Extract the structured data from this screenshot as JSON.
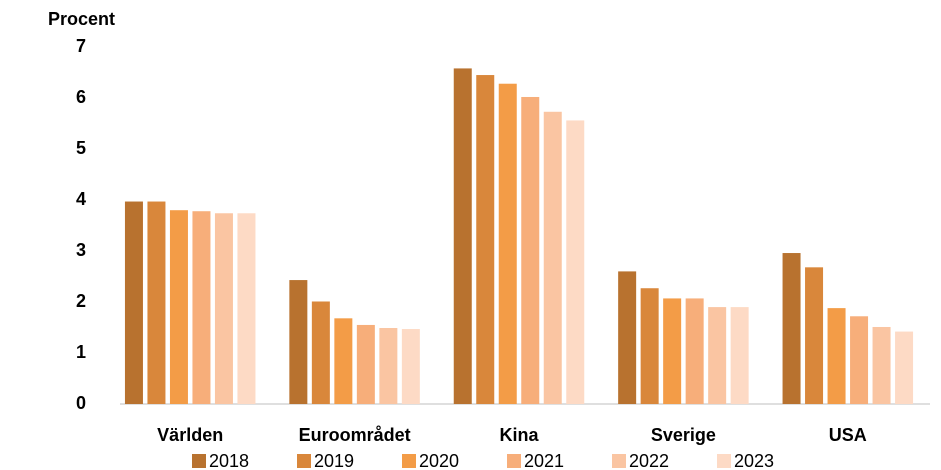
{
  "chart_data": {
    "type": "bar",
    "y_label": "Procent",
    "categories": [
      "Världen",
      "Euroområdet",
      "Kina",
      "Sverige",
      "USA"
    ],
    "series": [
      {
        "name": "2018",
        "color": "#b8722f",
        "values": [
          3.97,
          2.43,
          6.58,
          2.6,
          2.96
        ]
      },
      {
        "name": "2019",
        "color": "#d9873b",
        "values": [
          3.97,
          2.01,
          6.45,
          2.27,
          2.68
        ]
      },
      {
        "name": "2020",
        "color": "#f39c47",
        "values": [
          3.8,
          1.68,
          6.28,
          2.07,
          1.88
        ]
      },
      {
        "name": "2021",
        "color": "#f7ae7a",
        "values": [
          3.78,
          1.55,
          6.02,
          2.07,
          1.72
        ]
      },
      {
        "name": "2022",
        "color": "#fac5a2",
        "values": [
          3.74,
          1.49,
          5.73,
          1.9,
          1.51
        ]
      },
      {
        "name": "2023",
        "color": "#fddac5",
        "values": [
          3.74,
          1.47,
          5.56,
          1.9,
          1.42
        ]
      }
    ],
    "ylim": [
      0,
      7
    ],
    "yticks": [
      0,
      1,
      2,
      3,
      4,
      5,
      6,
      7
    ],
    "grid": false,
    "legend": "bottom"
  }
}
